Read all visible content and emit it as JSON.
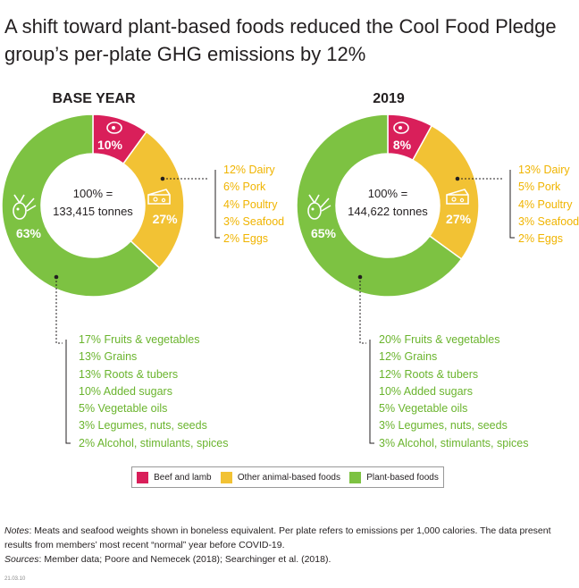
{
  "title": "A shift toward plant-based foods reduced the Cool Food Pledge group’s per-plate GHG emissions by 12%",
  "colors": {
    "beef": "#d91f5a",
    "animal": "#f2c234",
    "plant": "#7dc242",
    "text": "#231f20"
  },
  "chart_data": [
    {
      "type": "pie",
      "title": "BASE YEAR",
      "center_line1": "100% =",
      "center_line2": "133,415 tonnes",
      "slices": [
        {
          "name": "Beef and lamb",
          "value": 10,
          "label": "10%",
          "icon": "steak-icon"
        },
        {
          "name": "Other animal-based foods",
          "value": 27,
          "label": "27%",
          "icon": "cheese-icon"
        },
        {
          "name": "Plant-based foods",
          "value": 63,
          "label": "63%",
          "icon": "vegetables-icon"
        }
      ],
      "animal_breakdown": [
        {
          "value": 12,
          "text": "12% Dairy"
        },
        {
          "value": 6,
          "text": "6% Pork"
        },
        {
          "value": 4,
          "text": "4% Poultry"
        },
        {
          "value": 3,
          "text": "3% Seafood"
        },
        {
          "value": 2,
          "text": "2% Eggs"
        }
      ],
      "plant_breakdown": [
        {
          "value": 17,
          "text": "17% Fruits & vegetables"
        },
        {
          "value": 13,
          "text": "13% Grains"
        },
        {
          "value": 13,
          "text": "13% Roots & tubers"
        },
        {
          "value": 10,
          "text": "10% Added sugars"
        },
        {
          "value": 5,
          "text": "5% Vegetable oils"
        },
        {
          "value": 3,
          "text": "3% Legumes, nuts, seeds"
        },
        {
          "value": 2,
          "text": "2% Alcohol, stimulants, spices"
        }
      ]
    },
    {
      "type": "pie",
      "title": "2019",
      "center_line1": "100% =",
      "center_line2": "144,622 tonnes",
      "slices": [
        {
          "name": "Beef and lamb",
          "value": 8,
          "label": "8%",
          "icon": "steak-icon"
        },
        {
          "name": "Other animal-based foods",
          "value": 27,
          "label": "27%",
          "icon": "cheese-icon"
        },
        {
          "name": "Plant-based foods",
          "value": 65,
          "label": "65%",
          "icon": "vegetables-icon"
        }
      ],
      "animal_breakdown": [
        {
          "value": 13,
          "text": "13% Dairy"
        },
        {
          "value": 5,
          "text": "5% Pork"
        },
        {
          "value": 4,
          "text": "4% Poultry"
        },
        {
          "value": 3,
          "text": "3% Seafood"
        },
        {
          "value": 2,
          "text": "2% Eggs"
        }
      ],
      "plant_breakdown": [
        {
          "value": 20,
          "text": "20% Fruits & vegetables"
        },
        {
          "value": 12,
          "text": "12% Grains"
        },
        {
          "value": 12,
          "text": "12% Roots & tubers"
        },
        {
          "value": 10,
          "text": "10% Added sugars"
        },
        {
          "value": 5,
          "text": "5% Vegetable oils"
        },
        {
          "value": 3,
          "text": "3% Legumes, nuts, seeds"
        },
        {
          "value": 3,
          "text": "3% Alcohol, stimulants, spices"
        }
      ]
    }
  ],
  "legend": [
    {
      "label": "Beef and lamb",
      "color": "#d91f5a"
    },
    {
      "label": "Other animal-based foods",
      "color": "#f2c234"
    },
    {
      "label": "Plant-based foods",
      "color": "#7dc242"
    }
  ],
  "notes": {
    "notes_label": "Notes",
    "notes_text": ": Meats and seafood weights shown in boneless equivalent. Per plate refers to emissions per 1,000 calories. The data present results from members’ most recent “normal” year before COVID-19.",
    "sources_label": "Sources",
    "sources_text": ": Member data; Poore and Nemecek (2018); Searchinger et al. (2018)."
  },
  "stamp": "21.03.10"
}
